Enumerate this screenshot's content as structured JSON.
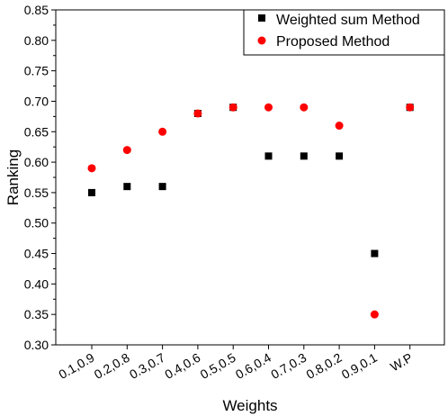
{
  "chart_data": {
    "type": "scatter",
    "xlabel": "Weights",
    "ylabel": "Ranking",
    "categories": [
      "0.1,0.9",
      "0.2,0.8",
      "0.3,0.7",
      "0.4,0.6",
      "0.5,0.5",
      "0.6,0.4",
      "0.7,0.3",
      "0.8,0.2",
      "0.9,0.1",
      "W.P"
    ],
    "ylim": [
      0.3,
      0.85
    ],
    "yticks": [
      "0.30",
      "0.35",
      "0.40",
      "0.45",
      "0.50",
      "0.55",
      "0.60",
      "0.65",
      "0.70",
      "0.75",
      "0.80",
      "0.85"
    ],
    "grid": false,
    "legend_position": "top-right",
    "series": [
      {
        "name": "Weighted sum Method",
        "marker": "square",
        "color": "#000000",
        "values": [
          0.55,
          0.56,
          0.56,
          0.68,
          0.69,
          0.61,
          0.61,
          0.61,
          0.45,
          0.69
        ]
      },
      {
        "name": "Proposed Method",
        "marker": "circle",
        "color": "#ff0000",
        "values": [
          0.59,
          0.62,
          0.65,
          0.68,
          0.69,
          0.69,
          0.69,
          0.66,
          0.35,
          0.69
        ]
      }
    ]
  }
}
